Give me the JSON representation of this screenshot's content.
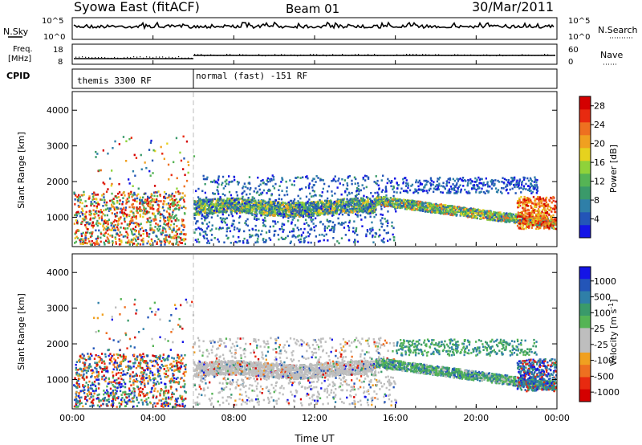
{
  "header": {
    "title": "Syowa East (fitACF)",
    "beam": "Beam 01",
    "date": "30/Mar/2011"
  },
  "status_panels": {
    "nsky_label": "N.Sky",
    "nsky_ticks": [
      "10^5",
      "10^0"
    ],
    "nsearch_label": "N.Search",
    "nsearch_ticks": [
      "10^5",
      "10^0"
    ],
    "freq_label": "Freq.",
    "freq_unit": "[MHz]",
    "freq_ticks": [
      "18",
      "8"
    ],
    "nave_label": "Nave",
    "nave_ticks": [
      "60",
      "0"
    ],
    "cpid_label": "CPID",
    "cpid_segments": [
      "themis 3300 RF",
      "normal (fast) -151 RF"
    ]
  },
  "colors": {
    "power_scale": [
      "#1414e6",
      "#2355b8",
      "#2f7fa8",
      "#3a9a6a",
      "#55b455",
      "#8fd23a",
      "#e6d21e",
      "#f0a020",
      "#ee7020",
      "#e82a10",
      "#d40000"
    ],
    "velocity_scale": [
      "#1414e6",
      "#2355b8",
      "#2f7fa8",
      "#3a9a6a",
      "#55b455",
      "#bebebe",
      "#bebebe",
      "#f0a020",
      "#ee7020",
      "#e82a10",
      "#d40000"
    ],
    "gray": "#bebebe"
  },
  "chart_data": [
    {
      "type": "heatmap",
      "name": "Power",
      "xlabel": "",
      "ylabel": "Slant Range [km]",
      "x_ticks": [
        "00:00",
        "04:00",
        "08:00",
        "12:00",
        "16:00",
        "20:00",
        "00:00"
      ],
      "xlim_hours": [
        0,
        24
      ],
      "ylim_km": [
        200,
        4500
      ],
      "y_ticks": [
        1000,
        2000,
        3000,
        4000
      ],
      "colorbar_label": "Power [dB]",
      "colorbar_ticks": [
        4,
        8,
        12,
        16,
        20,
        24,
        28
      ],
      "colorbar_range": [
        0,
        30
      ],
      "cpid_change_hour": 6.0
    },
    {
      "type": "heatmap",
      "name": "Velocity",
      "xlabel": "Time UT",
      "ylabel": "Slant Range [km]",
      "x_ticks": [
        "00:00",
        "04:00",
        "08:00",
        "12:00",
        "16:00",
        "20:00",
        "00:00"
      ],
      "xlim_hours": [
        0,
        24
      ],
      "ylim_km": [
        200,
        4500
      ],
      "y_ticks": [
        1000,
        2000,
        3000,
        4000
      ],
      "colorbar_label": "Velocity [m s",
      "colorbar_label_sup": "-1",
      "colorbar_label_end": "]",
      "colorbar_ticks": [
        "1000",
        "500",
        "100",
        "25",
        "-25",
        "-100",
        "-500",
        "-1000"
      ],
      "cpid_change_hour": 6.0
    }
  ]
}
